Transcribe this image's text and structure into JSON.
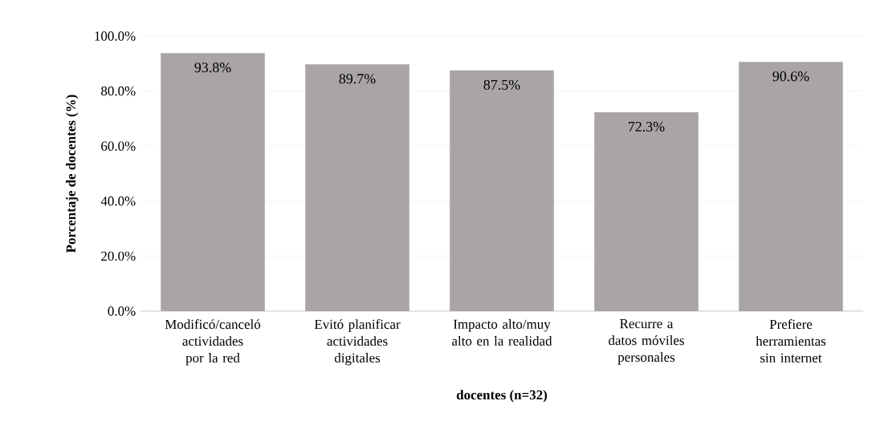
{
  "chart_data": {
    "type": "bar",
    "xlabel": "docentes (n=32)",
    "ylabel": "Porcentaje de docentes (%)",
    "categories": [
      "Modificó/canceló actividades por la red",
      "Evitó planificar actividades digitales",
      "Impacto alto/muy alto en la realidad",
      "Recurre a datos móviles personales",
      "Prefiere herramientas sin internet"
    ],
    "values": [
      93.8,
      89.7,
      87.5,
      72.3,
      90.6
    ],
    "value_labels": [
      "93.8%",
      "89.7%",
      "87.5%",
      "72.3%",
      "90.6%"
    ],
    "color": "#a9a5a5",
    "ylim": [
      0,
      100
    ],
    "yticks": [
      {
        "value": 0,
        "label": "0.0%"
      },
      {
        "value": 20,
        "label": "20.0%"
      },
      {
        "value": 40,
        "label": "40.0%"
      },
      {
        "value": 60,
        "label": "60.0%"
      },
      {
        "value": 80,
        "label": "80.0%"
      },
      {
        "value": 100,
        "label": "100.0%"
      }
    ],
    "grid": "y"
  }
}
